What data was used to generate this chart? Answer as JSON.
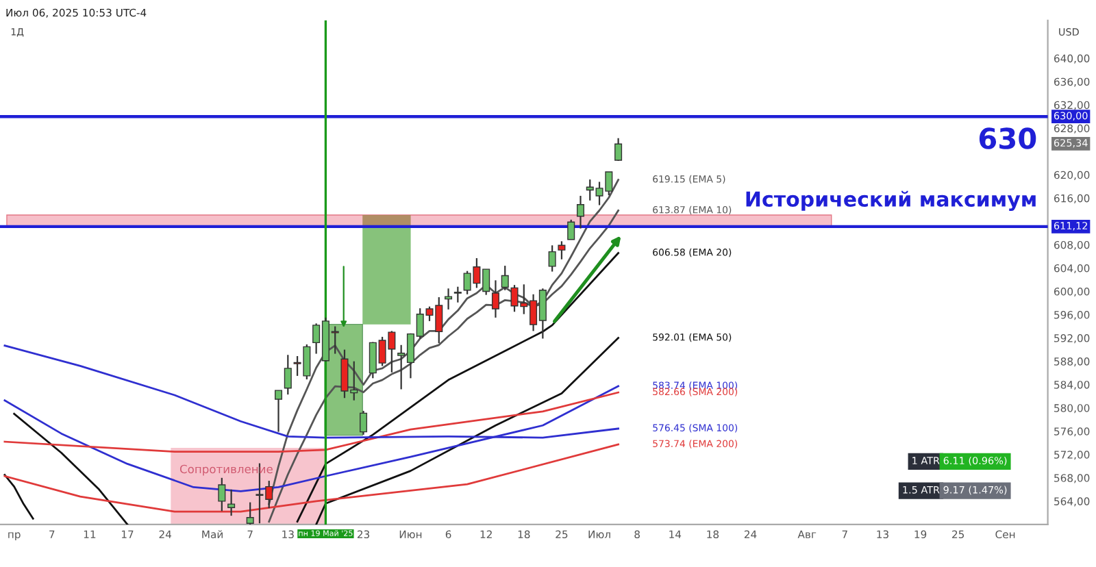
{
  "chart_data": {
    "type": "candlestick",
    "title": "Июл 06, 2025 10:53 UTC-4",
    "subtitle": "1Д",
    "ylabel": "USD",
    "categories": [
      null,
      "пр",
      null,
      null,
      null,
      "7",
      null,
      null,
      null,
      "11",
      null,
      null,
      null,
      "17",
      null,
      null,
      null,
      "24",
      null,
      null,
      null,
      null,
      "Май",
      null,
      null,
      null,
      "7",
      null,
      null,
      null,
      "13",
      null,
      null,
      null,
      "пн 19 Май '25",
      null,
      null,
      null,
      "23",
      null,
      null,
      null,
      null,
      "Июн",
      null,
      null,
      null,
      "6",
      null,
      null,
      null,
      "12",
      null,
      null,
      null,
      "18",
      null,
      null,
      null,
      "25",
      null,
      null,
      null,
      "Июл",
      null,
      null,
      null,
      "8",
      null,
      null,
      null,
      "14",
      null,
      null,
      null,
      "18",
      null,
      null,
      null,
      "24",
      null,
      null,
      null,
      null,
      null,
      "Авг",
      null,
      null,
      null,
      "7",
      null,
      null,
      null,
      "13",
      null,
      null,
      null,
      "19",
      null,
      null,
      null,
      "25",
      null,
      null,
      null,
      null,
      "Сен",
      null,
      null,
      null,
      null
    ],
    "ylim": [
      560,
      646.5
    ],
    "yticks": [
      {
        "value": 564,
        "label": "564,00"
      },
      {
        "value": 568,
        "label": "568,00"
      },
      {
        "value": 572,
        "label": "572,00"
      },
      {
        "value": 576,
        "label": "576,00"
      },
      {
        "value": 580,
        "label": "580,00"
      },
      {
        "value": 584,
        "label": "584,00"
      },
      {
        "value": 588,
        "label": "588,00"
      },
      {
        "value": 592,
        "label": "592,00"
      },
      {
        "value": 596,
        "label": "596,00"
      },
      {
        "value": 600,
        "label": "600,00"
      },
      {
        "value": 604,
        "label": "604,00"
      },
      {
        "value": 608,
        "label": "608,00"
      },
      {
        "value": 616,
        "label": "616,00"
      },
      {
        "value": 620,
        "label": "620,00"
      },
      {
        "value": 628,
        "label": "628,00"
      },
      {
        "value": 632,
        "label": "632,00"
      },
      {
        "value": 636,
        "label": "636,00"
      },
      {
        "value": 640,
        "label": "640,00"
      }
    ],
    "grid": false,
    "legend": false,
    "series": [
      {
        "ohlc": [
          null,
          null,
          null,
          null,
          null,
          null,
          null,
          null,
          null,
          null,
          null,
          null,
          null,
          null,
          null,
          null,
          null,
          null,
          null,
          null,
          null,
          null,
          null,
          [
            564.0,
            568.0,
            562.3,
            566.8
          ],
          [
            562.9,
            566.0,
            561.5,
            563.5
          ],
          null,
          [
            560.2,
            563.8,
            560.0,
            561.2
          ],
          [
            565.0,
            570.5,
            560.2,
            565.1
          ],
          [
            566.5,
            567.5,
            562.8,
            564.3
          ],
          [
            581.5,
            583.0,
            575.9,
            583.0
          ],
          [
            583.4,
            589.1,
            582.3,
            586.8
          ],
          [
            587.8,
            588.9,
            585.5,
            587.6
          ],
          [
            585.5,
            590.9,
            584.9,
            590.5
          ],
          [
            591.2,
            594.5,
            589.3,
            594.2
          ],
          [
            588.1,
            595.5,
            588.0,
            594.9
          ],
          [
            593.1,
            594.0,
            589.3,
            592.9
          ],
          [
            588.4,
            590.0,
            581.7,
            582.9
          ],
          [
            582.6,
            588.0,
            581.3,
            583.1
          ],
          [
            575.9,
            579.5,
            575.4,
            579.1
          ],
          [
            586.0,
            591.3,
            585.1,
            591.2
          ],
          [
            591.6,
            592.2,
            587.2,
            587.7
          ],
          [
            593.0,
            593.2,
            586.1,
            590.1
          ],
          [
            589.0,
            590.8,
            583.2,
            589.4
          ],
          [
            587.8,
            592.8,
            585.1,
            592.7
          ],
          [
            592.3,
            597.1,
            591.9,
            596.1
          ],
          [
            597.0,
            597.4,
            594.9,
            595.9
          ],
          [
            597.6,
            599.0,
            591.1,
            593.1
          ],
          [
            598.7,
            600.5,
            596.9,
            599.1
          ],
          [
            599.7,
            600.8,
            598.1,
            599.7
          ],
          [
            600.2,
            603.5,
            599.5,
            603.1
          ],
          [
            604.2,
            605.7,
            600.6,
            601.4
          ],
          [
            600.0,
            603.8,
            599.4,
            603.8
          ],
          [
            599.7,
            601.9,
            595.5,
            597.0
          ],
          [
            600.7,
            604.4,
            600.2,
            602.7
          ],
          [
            600.6,
            601.1,
            596.5,
            597.5
          ],
          [
            598.0,
            601.2,
            596.1,
            597.4
          ],
          [
            598.4,
            599.5,
            593.2,
            594.3
          ],
          [
            595.0,
            600.5,
            591.9,
            600.2
          ],
          [
            604.3,
            607.9,
            603.4,
            606.8
          ],
          [
            607.9,
            608.6,
            605.5,
            607.1
          ],
          [
            608.9,
            612.3,
            608.9,
            611.9
          ],
          [
            612.9,
            616.4,
            610.8,
            614.9
          ],
          [
            617.4,
            619.2,
            615.6,
            617.9
          ],
          [
            616.4,
            618.8,
            614.8,
            617.7
          ],
          [
            617.2,
            620.5,
            616.5,
            620.5
          ],
          [
            622.5,
            626.3,
            622.4,
            625.3
          ],
          null,
          null,
          null,
          null,
          null,
          null,
          null,
          null,
          null,
          null,
          null,
          null,
          null,
          null,
          null,
          null,
          null,
          null,
          null,
          null,
          null,
          null,
          null,
          null,
          null,
          null,
          null,
          null,
          null,
          null,
          null,
          null,
          null,
          null,
          null,
          null,
          null,
          null,
          null,
          null,
          null,
          null,
          null,
          null,
          null
        ],
        "colors": [
          null,
          null,
          null,
          null,
          null,
          null,
          null,
          null,
          null,
          null,
          null,
          null,
          null,
          null,
          null,
          null,
          null,
          null,
          null,
          null,
          null,
          null,
          null,
          "#6abf69",
          "#6abf69",
          null,
          "#6abf69",
          "#6abf69",
          "#e8231f",
          "#6abf69",
          "#6abf69",
          "#e8231f",
          "#6abf69",
          "#6abf69",
          "#6abf69",
          "#e8231f",
          "#e8231f",
          "#6abf69",
          "#6abf69",
          "#6abf69",
          "#e8231f",
          "#e8231f",
          "#6abf69",
          "#6abf69",
          "#6abf69",
          "#e8231f",
          "#e8231f",
          "#6abf69",
          "#6abf69",
          "#6abf69",
          "#e8231f",
          "#6abf69",
          "#e8231f",
          "#6abf69",
          "#e8231f",
          "#e8231f",
          "#e8231f",
          "#6abf69",
          "#6abf69",
          "#e8231f",
          "#6abf69",
          "#6abf69",
          "#6abf69",
          "#6abf69",
          "#6abf69",
          "#6abf69",
          null,
          null,
          null,
          null,
          null,
          null,
          null,
          null,
          null,
          null,
          null,
          null,
          null,
          null,
          null,
          null,
          null,
          null,
          null,
          null,
          null,
          null,
          null,
          null,
          null,
          null,
          null,
          null,
          null,
          null,
          null,
          null,
          null,
          null,
          null,
          null,
          null,
          null,
          null,
          null,
          null,
          null,
          null,
          null,
          null
        ]
      },
      {
        "type": "line",
        "name": "619.15 (EMA 5)",
        "color": "#555555",
        "values": [
          null,
          null,
          null,
          null,
          null,
          null,
          null,
          null,
          null,
          null,
          null,
          null,
          null,
          null,
          null,
          null,
          null,
          null,
          null,
          null,
          null,
          null,
          null,
          null,
          null,
          null,
          null,
          null,
          563.5,
          570.0,
          575.6,
          579.6,
          583.2,
          586.9,
          589.6,
          590.7,
          588.1,
          586.4,
          584.0,
          586.4,
          586.8,
          587.9,
          588.4,
          589.8,
          591.9,
          593.2,
          593.2,
          595.2,
          596.7,
          598.8,
          599.7,
          601.1,
          599.7,
          600.7,
          599.6,
          598.9,
          597.4,
          598.3,
          601.1,
          603.1,
          606.0,
          609.0,
          612.0,
          613.9,
          616.1,
          619.15,
          null,
          null,
          null,
          null,
          null,
          null,
          null,
          null,
          null,
          null,
          null,
          null,
          null,
          null,
          null,
          null,
          null,
          null,
          null,
          null,
          null,
          null,
          null,
          null,
          null,
          null,
          null,
          null,
          null,
          null,
          null,
          null,
          null,
          null,
          null,
          null,
          null,
          null,
          null,
          null,
          null,
          null,
          null,
          null,
          null
        ]
      },
      {
        "type": "line",
        "name": "613.87 (EMA 10)",
        "color": "#555555",
        "values": [
          null,
          null,
          null,
          null,
          null,
          null,
          null,
          null,
          null,
          null,
          null,
          null,
          null,
          null,
          null,
          null,
          null,
          null,
          null,
          null,
          null,
          null,
          null,
          null,
          null,
          null,
          null,
          null,
          560.5,
          564.6,
          568.6,
          572.1,
          575.4,
          578.8,
          581.7,
          583.7,
          583.6,
          583.5,
          582.7,
          584.2,
          584.8,
          585.8,
          586.5,
          587.6,
          589.1,
          590.3,
          590.8,
          592.3,
          593.6,
          595.3,
          596.4,
          597.7,
          597.6,
          598.5,
          598.3,
          598.1,
          597.4,
          597.9,
          599.5,
          600.9,
          602.9,
          605.1,
          607.4,
          609.3,
          611.3,
          613.87,
          null,
          null,
          null,
          null,
          null,
          null,
          null,
          null,
          null,
          null,
          null,
          null,
          null,
          null,
          null,
          null,
          null,
          null,
          null,
          null,
          null,
          null,
          null,
          null,
          null,
          null,
          null,
          null,
          null,
          null,
          null,
          null,
          null,
          null,
          null,
          null,
          null,
          null,
          null,
          null,
          null,
          null,
          null,
          null,
          null
        ]
      },
      {
        "type": "line",
        "color": "#111111",
        "values": [
          568.5,
          566.5,
          563.5,
          561.0,
          null,
          null,
          null,
          null,
          null,
          null,
          null,
          null,
          null,
          null,
          null,
          null,
          null,
          null,
          null,
          null,
          null,
          null,
          null,
          null,
          null,
          null,
          null,
          null,
          null,
          null,
          null,
          null,
          null,
          null,
          null,
          null,
          null,
          null,
          null,
          null,
          null,
          null,
          null,
          null,
          null,
          null,
          null,
          null,
          null,
          null,
          null,
          null,
          null,
          null,
          null,
          null,
          null,
          null,
          null,
          null,
          null,
          null,
          null,
          null,
          null,
          null,
          null,
          null,
          null,
          null,
          null,
          null,
          null,
          null,
          null,
          null,
          null,
          null,
          null,
          null,
          null,
          null,
          null,
          null,
          null,
          null,
          null,
          null,
          null,
          null,
          null,
          null,
          null,
          null,
          null,
          null,
          null,
          null,
          null,
          null,
          null,
          null,
          null,
          null,
          null,
          null,
          null,
          null,
          null,
          null,
          null
        ]
      },
      {
        "type": "line",
        "name": "606.58 (EMA 20)",
        "color": "#111111",
        "values": [
          null,
          null,
          null,
          null,
          null,
          null,
          null,
          null,
          null,
          null,
          null,
          null,
          null,
          null,
          null,
          null,
          null,
          null,
          null,
          null,
          null,
          null,
          null,
          null,
          null,
          null,
          null,
          null,
          null,
          null,
          null,
          560.5,
          null,
          null,
          570.4,
          null,
          null,
          null,
          null,
          575.4,
          null,
          null,
          null,
          null,
          null,
          null,
          null,
          584.8,
          null,
          null,
          null,
          null,
          null,
          null,
          null,
          null,
          null,
          593.1,
          594.2,
          null,
          null,
          null,
          null,
          null,
          null,
          606.58,
          null,
          null,
          null,
          null,
          null,
          null,
          null,
          null,
          null,
          null,
          null,
          null,
          null,
          null,
          null,
          null,
          null,
          null,
          null,
          null,
          null,
          null,
          null,
          null,
          null,
          null,
          null,
          null,
          null,
          null,
          null,
          null,
          null,
          null,
          null,
          null,
          null,
          null,
          null,
          null,
          null,
          null,
          null,
          null,
          null
        ]
      },
      {
        "type": "line",
        "color": "#111111",
        "values": [
          null,
          579.0,
          null,
          null,
          null,
          null,
          572.3,
          null,
          null,
          null,
          566.0,
          null,
          null,
          560.0,
          null,
          null,
          null,
          null,
          null,
          null,
          null,
          null,
          null,
          null,
          null,
          null,
          null,
          null,
          null,
          null,
          null,
          null,
          null,
          null,
          null,
          null,
          null,
          null,
          null,
          null,
          null,
          null,
          null,
          null,
          null,
          null,
          null,
          null,
          null,
          null,
          null,
          null,
          null,
          null,
          null,
          null,
          null,
          null,
          null,
          null,
          null,
          null,
          null,
          null,
          null,
          null,
          null,
          null,
          null,
          null,
          null,
          null,
          null,
          null,
          null,
          null,
          null,
          null,
          null,
          null,
          null,
          null,
          null,
          null,
          null,
          null,
          null,
          null,
          null,
          null,
          null,
          null,
          null,
          null,
          null,
          null,
          null,
          null,
          null,
          null,
          null,
          null,
          null,
          null,
          null,
          null,
          null,
          null,
          null,
          null,
          null
        ]
      },
      {
        "type": "line",
        "name": "592.01 (EMA 50)",
        "color": "#111111",
        "values": [
          null,
          null,
          null,
          null,
          null,
          null,
          null,
          null,
          null,
          null,
          null,
          null,
          null,
          null,
          null,
          null,
          null,
          null,
          null,
          null,
          null,
          null,
          null,
          null,
          null,
          null,
          null,
          null,
          null,
          null,
          null,
          null,
          null,
          560.0,
          563.6,
          null,
          null,
          null,
          null,
          null,
          null,
          null,
          null,
          569.2,
          null,
          null,
          null,
          null,
          null,
          null,
          null,
          null,
          577.0,
          null,
          null,
          null,
          null,
          null,
          null,
          582.5,
          null,
          null,
          null,
          null,
          null,
          592.01,
          null,
          null,
          null,
          null,
          null,
          null,
          null,
          null,
          null,
          null,
          null,
          null,
          null,
          null,
          null,
          null,
          null,
          null,
          null,
          null,
          null,
          null,
          null,
          null,
          null,
          null,
          null,
          null,
          null,
          null,
          null,
          null,
          null,
          null,
          null,
          null,
          null,
          null,
          null,
          null,
          null,
          null,
          null,
          null,
          null
        ]
      },
      {
        "type": "line",
        "name": "583.74 (EMA 100)",
        "color": "#2f2fd0",
        "values": [
          581.3,
          null,
          null,
          null,
          null,
          null,
          575.6,
          null,
          null,
          null,
          null,
          null,
          null,
          570.4,
          null,
          null,
          null,
          null,
          null,
          null,
          566.4,
          null,
          null,
          null,
          null,
          565.7,
          null,
          null,
          null,
          566.4,
          null,
          null,
          null,
          null,
          568.3,
          null,
          null,
          null,
          null,
          null,
          null,
          null,
          null,
          571.6,
          null,
          null,
          null,
          null,
          null,
          null,
          null,
          null,
          null,
          null,
          null,
          null,
          null,
          577.0,
          null,
          null,
          null,
          null,
          null,
          null,
          null,
          583.74,
          null,
          null,
          null,
          null,
          null,
          null,
          null,
          null,
          null,
          null,
          null,
          null,
          null,
          null,
          null,
          null,
          null,
          null,
          null,
          null,
          null,
          null,
          null,
          null,
          null,
          null,
          null,
          null,
          null,
          null,
          null,
          null,
          null,
          null,
          null,
          null,
          null,
          null,
          null,
          null,
          null,
          null,
          null,
          null,
          null
        ]
      },
      {
        "type": "line",
        "name": "582.66 (SMA 200)",
        "color": "#e03a3a",
        "values": [
          574.2,
          null,
          null,
          null,
          null,
          null,
          null,
          null,
          null,
          null,
          null,
          null,
          null,
          null,
          null,
          null,
          null,
          null,
          572.5,
          null,
          null,
          null,
          null,
          null,
          null,
          null,
          null,
          null,
          null,
          572.5,
          null,
          null,
          null,
          null,
          572.8,
          null,
          null,
          null,
          null,
          null,
          null,
          null,
          null,
          576.3,
          null,
          null,
          null,
          null,
          null,
          null,
          null,
          null,
          null,
          null,
          null,
          null,
          null,
          579.4,
          null,
          null,
          null,
          null,
          null,
          null,
          null,
          582.66,
          null,
          null,
          null,
          null,
          null,
          null,
          null,
          null,
          null,
          null,
          null,
          null,
          null,
          null,
          null,
          null,
          null,
          null,
          null,
          null,
          null,
          null,
          null,
          null,
          null,
          null,
          null,
          null,
          null,
          null,
          null,
          null,
          null,
          null,
          null,
          null,
          null,
          null,
          null,
          null,
          null,
          null,
          null,
          null,
          null
        ]
      },
      {
        "type": "line",
        "name": "576.45 (SMA 100)",
        "color": "#2f2fd0",
        "values": [
          590.7,
          null,
          null,
          null,
          null,
          null,
          null,
          null,
          587.2,
          null,
          null,
          null,
          null,
          null,
          null,
          null,
          null,
          null,
          582.2,
          null,
          null,
          null,
          null,
          null,
          null,
          577.7,
          null,
          null,
          null,
          null,
          575.1,
          null,
          null,
          null,
          574.9,
          null,
          null,
          null,
          null,
          null,
          null,
          null,
          null,
          null,
          null,
          null,
          null,
          575.1,
          null,
          null,
          null,
          null,
          null,
          null,
          null,
          null,
          null,
          574.9,
          null,
          null,
          null,
          null,
          null,
          null,
          null,
          576.45,
          null,
          null,
          null,
          null,
          null,
          null,
          null,
          null,
          null,
          null,
          null,
          null,
          null,
          null,
          null,
          null,
          null,
          null,
          null,
          null,
          null,
          null,
          null,
          null,
          null,
          null,
          null,
          null,
          null,
          null,
          null,
          null,
          null,
          null,
          null,
          null,
          null,
          null,
          null,
          null,
          null,
          null,
          null,
          null,
          null
        ]
      },
      {
        "type": "line",
        "name": "573.74 (EMA 200)",
        "color": "#e03a3a",
        "values": [
          568.3,
          null,
          null,
          null,
          null,
          null,
          null,
          null,
          564.8,
          null,
          null,
          null,
          null,
          null,
          null,
          null,
          null,
          null,
          562.2,
          null,
          null,
          null,
          null,
          null,
          null,
          562.2,
          null,
          null,
          null,
          null,
          null,
          null,
          null,
          564.0,
          null,
          null,
          null,
          null,
          null,
          null,
          null,
          null,
          null,
          null,
          null,
          null,
          null,
          null,
          null,
          566.9,
          null,
          null,
          null,
          null,
          null,
          null,
          null,
          null,
          null,
          null,
          null,
          null,
          null,
          null,
          null,
          573.74,
          null,
          null,
          null,
          null,
          null,
          null,
          null,
          null,
          null,
          null,
          null,
          null,
          null,
          null,
          null,
          null,
          null,
          null,
          null,
          null,
          null,
          null,
          null,
          null,
          null,
          null,
          null,
          null,
          null,
          null,
          null,
          null,
          null,
          null,
          null,
          null,
          null,
          null,
          null,
          null,
          null,
          null,
          null,
          null,
          null
        ]
      }
    ],
    "ref_lines": [
      {
        "axis": "y",
        "value": 630,
        "label": "630,00",
        "color": "#1f1fd6"
      },
      {
        "axis": "y",
        "value": 611.12,
        "label": "611,12",
        "color": "#1f1fd6"
      },
      {
        "axis": "x",
        "value": "пн 19 Май '25",
        "color": "#1a9a1a"
      }
    ],
    "annotations": [
      "630",
      "Исторический максимум",
      "Сопротивление",
      {
        "text": "625,34",
        "y": 625.34
      },
      "1 ATR",
      "6.11 (0.96%)",
      "1.5 ATR",
      "9.17 (1.47%)"
    ]
  }
}
